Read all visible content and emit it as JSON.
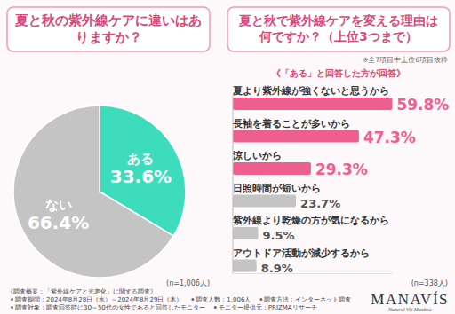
{
  "chart_data": [
    {
      "type": "pie",
      "title": "夏と秋の紫外線ケアに違いはありますか？",
      "categories": [
        "ある",
        "ない"
      ],
      "values": [
        33.6,
        66.4
      ],
      "value_labels": [
        "33.6%",
        "66.4%"
      ],
      "colors": [
        "#3ddcbd",
        "#c4c4c4"
      ],
      "data_labels": true,
      "annotations": [
        "(n=1,006人)"
      ]
    },
    {
      "type": "bar",
      "orientation": "horizontal",
      "title": "夏と秋で紫外線ケアを変える理由は何ですか？（上位3つまで）",
      "subtitle": "※全7項目中上位6項目抜粋",
      "annotations": [
        "《「ある」と回答した方が回答》",
        "(n=338人)"
      ],
      "categories": [
        "夏より紫外線が強くないと思うから",
        "長袖を着ることが多いから",
        "涼しいから",
        "日照時間が短いから",
        "紫外線より乾燥の方が気になるから",
        "アウトドア活動が減少するから"
      ],
      "values": [
        59.8,
        47.3,
        29.3,
        23.7,
        9.5,
        8.9
      ],
      "value_labels": [
        "59.8%",
        "47.3%",
        "29.3%",
        "23.7%",
        "9.5%",
        "8.9%"
      ],
      "colors": [
        "#ee5f8f",
        "#ee5f8f",
        "#ee5f8f",
        "#c4c4c4",
        "#c4c4c4",
        "#c4c4c4"
      ],
      "xlim": [
        0,
        60
      ],
      "tick_labels": false,
      "data_labels": true
    }
  ],
  "footer": {
    "heading": "《調査概要：「紫外線ケアと光老化」に関する調査》",
    "items": [
      "調査期間：2024年8月28日（水）～2024年8月29日（木）",
      "調査人数：1,006人",
      "調査方法：インターネット調査",
      "調査対象：調査回答時に30～50代の女性であると回答したモニター",
      "モニター提供元：PRIZMAリサーチ"
    ]
  },
  "logo": {
    "name": "MANAVÍS",
    "tagline": "Natural Vis Maxima"
  }
}
